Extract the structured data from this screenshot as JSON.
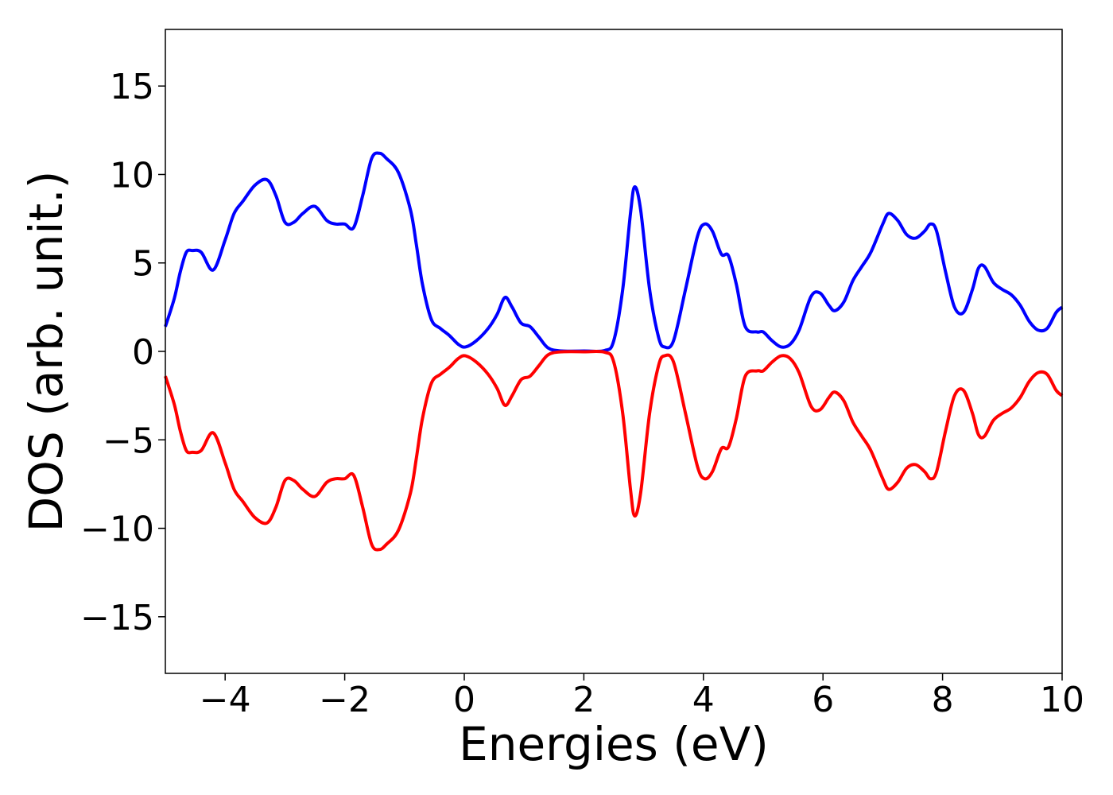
{
  "chart_data": {
    "type": "line",
    "xlabel": "Energies (eV)",
    "ylabel": "DOS (arb. unit.)",
    "xlim": [
      -5,
      10
    ],
    "ylim": [
      -18.2,
      18.2
    ],
    "x_ticks": [
      -4,
      -2,
      0,
      2,
      4,
      6,
      8,
      10
    ],
    "x_tick_labels": [
      "−4",
      "−2",
      "0",
      "2",
      "4",
      "6",
      "8",
      "10"
    ],
    "y_ticks": [
      -15,
      -10,
      -5,
      0,
      5,
      10,
      15
    ],
    "y_tick_labels": [
      "−15",
      "−10",
      "−5",
      "0",
      "5",
      "10",
      "15"
    ],
    "grid": false,
    "series": [
      {
        "color": "#0000ff",
        "x": [
          -5,
          -4.85,
          -4.75,
          -4.65,
          -4.55,
          -4.4,
          -4.2,
          -4.0,
          -3.85,
          -3.7,
          -3.5,
          -3.3,
          -3.15,
          -3.0,
          -2.85,
          -2.7,
          -2.5,
          -2.3,
          -2.15,
          -2.0,
          -1.85,
          -1.7,
          -1.55,
          -1.42,
          -1.3,
          -1.1,
          -0.9,
          -0.8,
          -0.7,
          -0.55,
          -0.4,
          -0.25,
          -0.1,
          0.02,
          0.2,
          0.4,
          0.55,
          0.68,
          0.8,
          0.95,
          1.1,
          1.25,
          1.4,
          1.6,
          2.0,
          2.35,
          2.5,
          2.65,
          2.78,
          2.85,
          2.95,
          3.1,
          3.25,
          3.35,
          3.5,
          3.7,
          3.9,
          4.02,
          4.15,
          4.3,
          4.42,
          4.55,
          4.7,
          4.9,
          5.0,
          5.15,
          5.3,
          5.45,
          5.6,
          5.8,
          5.95,
          6.1,
          6.2,
          6.35,
          6.5,
          6.65,
          6.8,
          7.0,
          7.1,
          7.25,
          7.4,
          7.55,
          7.7,
          7.8,
          7.9,
          8.05,
          8.2,
          8.35,
          8.5,
          8.6,
          8.7,
          8.85,
          9.0,
          9.15,
          9.3,
          9.45,
          9.6,
          9.75,
          9.9,
          10.0
        ],
        "y": [
          1.4,
          3.0,
          4.5,
          5.6,
          5.7,
          5.6,
          4.6,
          6.3,
          7.8,
          8.5,
          9.4,
          9.7,
          8.8,
          7.3,
          7.3,
          7.8,
          8.2,
          7.4,
          7.2,
          7.2,
          7.0,
          8.8,
          10.9,
          11.2,
          10.9,
          10.1,
          8.0,
          6.0,
          3.8,
          1.8,
          1.3,
          0.9,
          0.4,
          0.25,
          0.6,
          1.3,
          2.1,
          3.05,
          2.5,
          1.6,
          1.4,
          0.8,
          0.2,
          0.03,
          0.02,
          0.05,
          0.6,
          3.5,
          7.8,
          9.3,
          8.0,
          3.5,
          0.8,
          0.25,
          0.6,
          3.5,
          6.5,
          7.2,
          6.8,
          5.5,
          5.4,
          3.8,
          1.4,
          1.1,
          1.1,
          0.6,
          0.25,
          0.4,
          1.2,
          3.1,
          3.3,
          2.6,
          2.3,
          2.8,
          4.0,
          4.8,
          5.6,
          7.2,
          7.8,
          7.4,
          6.6,
          6.4,
          6.8,
          7.2,
          6.8,
          4.5,
          2.5,
          2.2,
          3.5,
          4.7,
          4.8,
          3.9,
          3.5,
          3.2,
          2.6,
          1.7,
          1.2,
          1.3,
          2.2,
          2.5
        ]
      },
      {
        "color": "#ff0000",
        "x": [
          -5,
          -4.85,
          -4.75,
          -4.65,
          -4.55,
          -4.4,
          -4.2,
          -4.0,
          -3.85,
          -3.7,
          -3.5,
          -3.3,
          -3.15,
          -3.0,
          -2.85,
          -2.7,
          -2.5,
          -2.3,
          -2.15,
          -2.0,
          -1.85,
          -1.7,
          -1.55,
          -1.42,
          -1.3,
          -1.1,
          -0.9,
          -0.8,
          -0.7,
          -0.55,
          -0.4,
          -0.25,
          -0.1,
          0.02,
          0.2,
          0.4,
          0.55,
          0.68,
          0.8,
          0.95,
          1.1,
          1.25,
          1.4,
          1.6,
          2.0,
          2.35,
          2.5,
          2.65,
          2.78,
          2.85,
          2.95,
          3.1,
          3.25,
          3.35,
          3.5,
          3.7,
          3.9,
          4.02,
          4.15,
          4.3,
          4.42,
          4.55,
          4.7,
          4.9,
          5.0,
          5.15,
          5.3,
          5.45,
          5.6,
          5.8,
          5.95,
          6.1,
          6.2,
          6.35,
          6.5,
          6.65,
          6.8,
          7.0,
          7.1,
          7.25,
          7.4,
          7.55,
          7.7,
          7.8,
          7.9,
          8.05,
          8.2,
          8.35,
          8.5,
          8.6,
          8.7,
          8.85,
          9.0,
          9.15,
          9.3,
          9.45,
          9.6,
          9.75,
          9.9,
          10.0
        ],
        "y": [
          -1.4,
          -3.0,
          -4.5,
          -5.6,
          -5.7,
          -5.6,
          -4.6,
          -6.3,
          -7.8,
          -8.5,
          -9.4,
          -9.7,
          -8.8,
          -7.3,
          -7.3,
          -7.8,
          -8.2,
          -7.4,
          -7.2,
          -7.2,
          -7.0,
          -8.8,
          -10.9,
          -11.2,
          -10.9,
          -10.1,
          -8.0,
          -6.0,
          -3.8,
          -1.8,
          -1.3,
          -0.9,
          -0.4,
          -0.25,
          -0.6,
          -1.3,
          -2.1,
          -3.05,
          -2.5,
          -1.6,
          -1.4,
          -0.8,
          -0.2,
          -0.03,
          -0.02,
          -0.05,
          -0.6,
          -3.5,
          -7.8,
          -9.3,
          -8.0,
          -3.5,
          -0.8,
          -0.25,
          -0.6,
          -3.5,
          -6.5,
          -7.2,
          -6.8,
          -5.5,
          -5.4,
          -3.8,
          -1.4,
          -1.1,
          -1.1,
          -0.6,
          -0.25,
          -0.4,
          -1.2,
          -3.1,
          -3.3,
          -2.6,
          -2.3,
          -2.8,
          -4.0,
          -4.8,
          -5.6,
          -7.2,
          -7.8,
          -7.4,
          -6.6,
          -6.4,
          -6.8,
          -7.2,
          -6.8,
          -4.5,
          -2.5,
          -2.2,
          -3.5,
          -4.7,
          -4.8,
          -3.9,
          -3.5,
          -3.2,
          -2.6,
          -1.7,
          -1.2,
          -1.3,
          -2.2,
          -2.5
        ]
      }
    ]
  }
}
